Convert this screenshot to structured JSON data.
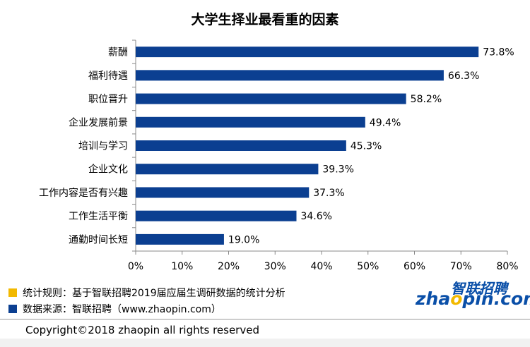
{
  "chart_data": {
    "type": "bar",
    "orientation": "horizontal",
    "title": "大学生择业最看重的因素",
    "categories": [
      "薪酬",
      "福利待遇",
      "职位晋升",
      "企业发展前景",
      "培训与学习",
      "企业文化",
      "工作内容是否有兴趣",
      "工作生活平衡",
      "通勤时间长短"
    ],
    "values": [
      73.8,
      66.3,
      58.2,
      49.4,
      45.3,
      39.3,
      37.3,
      34.6,
      19.0
    ],
    "value_labels": [
      "73.8%",
      "66.3%",
      "58.2%",
      "49.4%",
      "45.3%",
      "39.3%",
      "37.3%",
      "34.6%",
      "19.0%"
    ],
    "xlim": [
      0,
      80
    ],
    "xticks": [
      0,
      10,
      20,
      30,
      40,
      50,
      60,
      70,
      80
    ],
    "xtick_labels": [
      "0%",
      "10%",
      "20%",
      "30%",
      "40%",
      "50%",
      "60%",
      "70%",
      "80%"
    ],
    "bar_color": "#0b3f91",
    "grid": false
  },
  "notes": {
    "rule_label": "统计规则：基于智联招聘2019届应届生调研数据的统计分析",
    "rule_color": "#f2b900",
    "source_label": "数据来源：智联招聘（www.zhaopin.com）",
    "source_color": "#0b3f91"
  },
  "logo": {
    "cn": "智联招聘",
    "en_before": "zha",
    "en_o": "o",
    "en_after": "pin.com"
  },
  "copyright": "Copyright©2018 zhaopin all rights reserved"
}
